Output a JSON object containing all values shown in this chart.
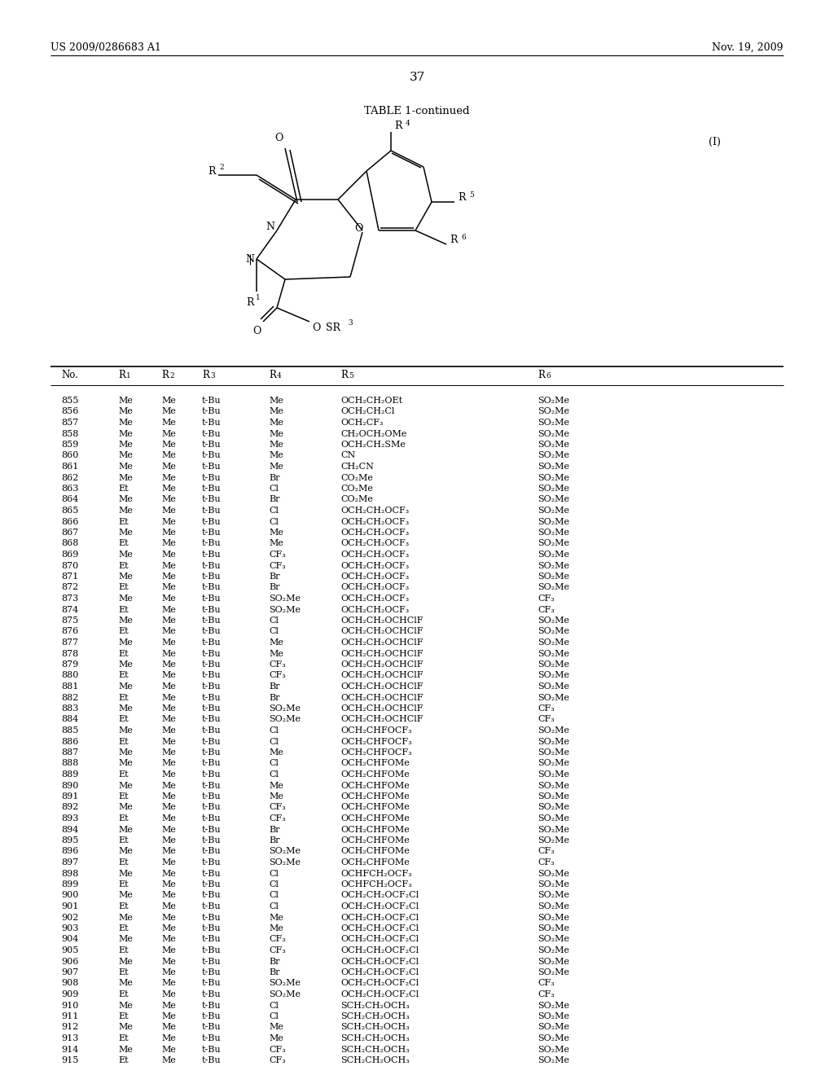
{
  "patent_number": "US 2009/0286683 A1",
  "date": "Nov. 19, 2009",
  "page_number": "37",
  "table_title": "TABLE 1-continued",
  "rows": [
    [
      "855",
      "Me",
      "Me",
      "t-Bu",
      "Me",
      "OCH₂CH₂OEt",
      "SO₂Me"
    ],
    [
      "856",
      "Me",
      "Me",
      "t-Bu",
      "Me",
      "OCH₂CH₂Cl",
      "SO₂Me"
    ],
    [
      "857",
      "Me",
      "Me",
      "t-Bu",
      "Me",
      "OCH₂CF₃",
      "SO₂Me"
    ],
    [
      "858",
      "Me",
      "Me",
      "t-Bu",
      "Me",
      "CH₂OCH₂OMe",
      "SO₂Me"
    ],
    [
      "859",
      "Me",
      "Me",
      "t-Bu",
      "Me",
      "OCH₂CH₂SMe",
      "SO₂Me"
    ],
    [
      "860",
      "Me",
      "Me",
      "t-Bu",
      "Me",
      "CN",
      "SO₂Me"
    ],
    [
      "861",
      "Me",
      "Me",
      "t-Bu",
      "Me",
      "CH₂CN",
      "SO₂Me"
    ],
    [
      "862",
      "Me",
      "Me",
      "t-Bu",
      "Br",
      "CO₂Me",
      "SO₂Me"
    ],
    [
      "863",
      "Et",
      "Me",
      "t-Bu",
      "Cl",
      "CO₂Me",
      "SO₂Me"
    ],
    [
      "864",
      "Me",
      "Me",
      "t-Bu",
      "Br",
      "CO₂Me",
      "SO₂Me"
    ],
    [
      "865",
      "Me",
      "Me",
      "t-Bu",
      "Cl",
      "OCH₂CH₂OCF₃",
      "SO₂Me"
    ],
    [
      "866",
      "Et",
      "Me",
      "t-Bu",
      "Cl",
      "OCH₂CH₂OCF₃",
      "SO₂Me"
    ],
    [
      "867",
      "Me",
      "Me",
      "t-Bu",
      "Me",
      "OCH₂CH₂OCF₃",
      "SO₂Me"
    ],
    [
      "868",
      "Et",
      "Me",
      "t-Bu",
      "Me",
      "OCH₂CH₂OCF₃",
      "SO₂Me"
    ],
    [
      "869",
      "Me",
      "Me",
      "t-Bu",
      "CF₃",
      "OCH₂CH₂OCF₃",
      "SO₂Me"
    ],
    [
      "870",
      "Et",
      "Me",
      "t-Bu",
      "CF₃",
      "OCH₂CH₂OCF₃",
      "SO₂Me"
    ],
    [
      "871",
      "Me",
      "Me",
      "t-Bu",
      "Br",
      "OCH₂CH₂OCF₃",
      "SO₂Me"
    ],
    [
      "872",
      "Et",
      "Me",
      "t-Bu",
      "Br",
      "OCH₂CH₂OCF₃",
      "SO₂Me"
    ],
    [
      "873",
      "Me",
      "Me",
      "t-Bu",
      "SO₂Me",
      "OCH₂CH₂OCF₃",
      "CF₃"
    ],
    [
      "874",
      "Et",
      "Me",
      "t-Bu",
      "SO₂Me",
      "OCH₂CH₂OCF₃",
      "CF₃"
    ],
    [
      "875",
      "Me",
      "Me",
      "t-Bu",
      "Cl",
      "OCH₂CH₂OCHClF",
      "SO₂Me"
    ],
    [
      "876",
      "Et",
      "Me",
      "t-Bu",
      "Cl",
      "OCH₂CH₂OCHClF",
      "SO₂Me"
    ],
    [
      "877",
      "Me",
      "Me",
      "t-Bu",
      "Me",
      "OCH₂CH₂OCHClF",
      "SO₂Me"
    ],
    [
      "878",
      "Et",
      "Me",
      "t-Bu",
      "Me",
      "OCH₂CH₂OCHClF",
      "SO₂Me"
    ],
    [
      "879",
      "Me",
      "Me",
      "t-Bu",
      "CF₃",
      "OCH₂CH₂OCHClF",
      "SO₂Me"
    ],
    [
      "880",
      "Et",
      "Me",
      "t-Bu",
      "CF₃",
      "OCH₂CH₂OCHClF",
      "SO₂Me"
    ],
    [
      "881",
      "Me",
      "Me",
      "t-Bu",
      "Br",
      "OCH₂CH₂OCHClF",
      "SO₂Me"
    ],
    [
      "882",
      "Et",
      "Me",
      "t-Bu",
      "Br",
      "OCH₂CH₂OCHClF",
      "SO₂Me"
    ],
    [
      "883",
      "Me",
      "Me",
      "t-Bu",
      "SO₂Me",
      "OCH₂CH₂OCHClF",
      "CF₃"
    ],
    [
      "884",
      "Et",
      "Me",
      "t-Bu",
      "SO₂Me",
      "OCH₂CH₂OCHClF",
      "CF₃"
    ],
    [
      "885",
      "Me",
      "Me",
      "t-Bu",
      "Cl",
      "OCH₂CHFOCF₃",
      "SO₂Me"
    ],
    [
      "886",
      "Et",
      "Me",
      "t-Bu",
      "Cl",
      "OCH₂CHFOCF₃",
      "SO₂Me"
    ],
    [
      "887",
      "Me",
      "Me",
      "t-Bu",
      "Me",
      "OCH₂CHFOCF₃",
      "SO₂Me"
    ],
    [
      "888",
      "Me",
      "Me",
      "t-Bu",
      "Cl",
      "OCH₂CHFOMe",
      "SO₂Me"
    ],
    [
      "889",
      "Et",
      "Me",
      "t-Bu",
      "Cl",
      "OCH₂CHFOMe",
      "SO₂Me"
    ],
    [
      "890",
      "Me",
      "Me",
      "t-Bu",
      "Me",
      "OCH₂CHFOMe",
      "SO₂Me"
    ],
    [
      "891",
      "Et",
      "Me",
      "t-Bu",
      "Me",
      "OCH₂CHFOMe",
      "SO₂Me"
    ],
    [
      "892",
      "Me",
      "Me",
      "t-Bu",
      "CF₃",
      "OCH₂CHFOMe",
      "SO₂Me"
    ],
    [
      "893",
      "Et",
      "Me",
      "t-Bu",
      "CF₃",
      "OCH₂CHFOMe",
      "SO₂Me"
    ],
    [
      "894",
      "Me",
      "Me",
      "t-Bu",
      "Br",
      "OCH₂CHFOMe",
      "SO₂Me"
    ],
    [
      "895",
      "Et",
      "Me",
      "t-Bu",
      "Br",
      "OCH₂CHFOMe",
      "SO₂Me"
    ],
    [
      "896",
      "Me",
      "Me",
      "t-Bu",
      "SO₂Me",
      "OCH₂CHFOMe",
      "CF₃"
    ],
    [
      "897",
      "Et",
      "Me",
      "t-Bu",
      "SO₂Me",
      "OCH₂CHFOMe",
      "CF₃"
    ],
    [
      "898",
      "Me",
      "Me",
      "t-Bu",
      "Cl",
      "OCHFCH₂OCF₃",
      "SO₂Me"
    ],
    [
      "899",
      "Et",
      "Me",
      "t-Bu",
      "Cl",
      "OCHFCH₂OCF₃",
      "SO₂Me"
    ],
    [
      "900",
      "Me",
      "Me",
      "t-Bu",
      "Cl",
      "OCH₂CH₂OCF₂Cl",
      "SO₂Me"
    ],
    [
      "901",
      "Et",
      "Me",
      "t-Bu",
      "Cl",
      "OCH₂CH₂OCF₂Cl",
      "SO₂Me"
    ],
    [
      "902",
      "Me",
      "Me",
      "t-Bu",
      "Me",
      "OCH₂CH₂OCF₂Cl",
      "SO₂Me"
    ],
    [
      "903",
      "Et",
      "Me",
      "t-Bu",
      "Me",
      "OCH₂CH₂OCF₂Cl",
      "SO₂Me"
    ],
    [
      "904",
      "Me",
      "Me",
      "t-Bu",
      "CF₃",
      "OCH₂CH₂OCF₂Cl",
      "SO₂Me"
    ],
    [
      "905",
      "Et",
      "Me",
      "t-Bu",
      "CF₃",
      "OCH₂CH₂OCF₂Cl",
      "SO₂Me"
    ],
    [
      "906",
      "Me",
      "Me",
      "t-Bu",
      "Br",
      "OCH₂CH₂OCF₂Cl",
      "SO₂Me"
    ],
    [
      "907",
      "Et",
      "Me",
      "t-Bu",
      "Br",
      "OCH₂CH₂OCF₂Cl",
      "SO₂Me"
    ],
    [
      "908",
      "Me",
      "Me",
      "t-Bu",
      "SO₂Me",
      "OCH₂CH₂OCF₂Cl",
      "CF₃"
    ],
    [
      "909",
      "Et",
      "Me",
      "t-Bu",
      "SO₂Me",
      "OCH₂CH₂OCF₂Cl",
      "CF₃"
    ],
    [
      "910",
      "Me",
      "Me",
      "t-Bu",
      "Cl",
      "SCH₂CH₂OCH₃",
      "SO₂Me"
    ],
    [
      "911",
      "Et",
      "Me",
      "t-Bu",
      "Cl",
      "SCH₂CH₂OCH₃",
      "SO₂Me"
    ],
    [
      "912",
      "Me",
      "Me",
      "t-Bu",
      "Me",
      "SCH₂CH₂OCH₃",
      "SO₂Me"
    ],
    [
      "913",
      "Et",
      "Me",
      "t-Bu",
      "Me",
      "SCH₂CH₂OCH₃",
      "SO₂Me"
    ],
    [
      "914",
      "Me",
      "Me",
      "t-Bu",
      "CF₃",
      "SCH₂CH₂OCH₃",
      "SO₂Me"
    ],
    [
      "915",
      "Et",
      "Me",
      "t-Bu",
      "CF₃",
      "SCH₂CH₂OCH₃",
      "SO₂Me"
    ]
  ]
}
